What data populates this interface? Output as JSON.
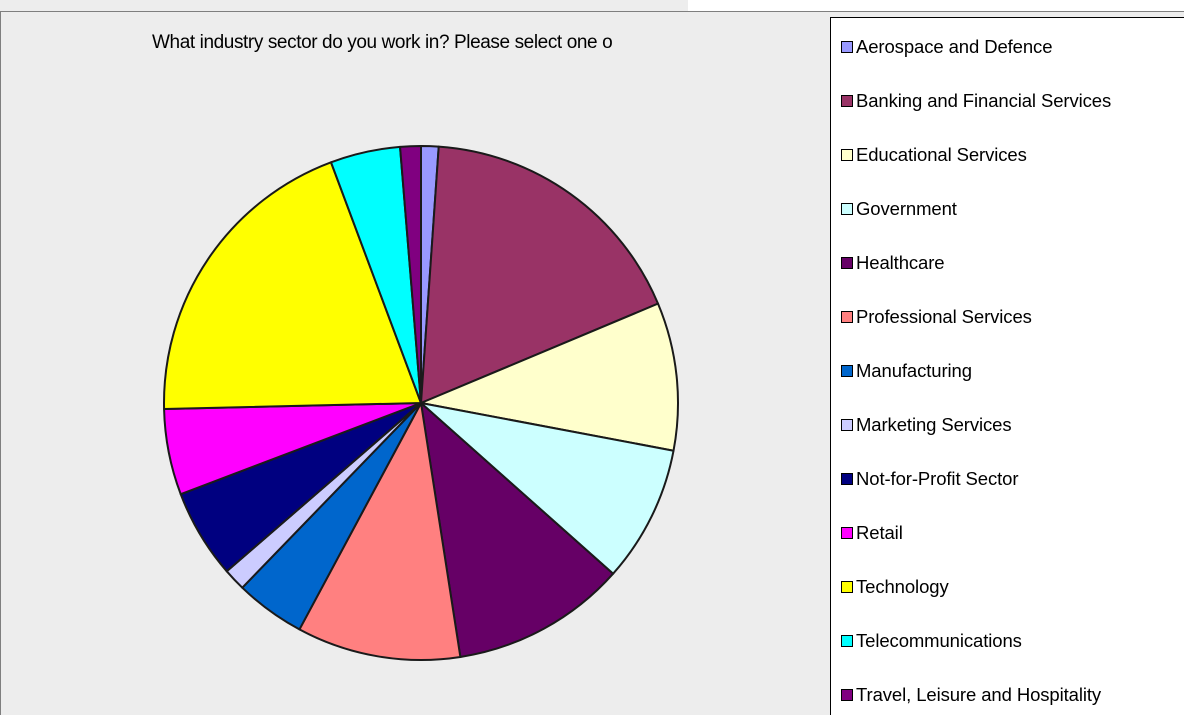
{
  "chart_data": {
    "type": "pie",
    "title": "What industry sector do you work in? Please select one o",
    "legend_position": "right",
    "slices": [
      {
        "label": "Aerospace and Defence",
        "value": 1.1,
        "color": "#9999ff"
      },
      {
        "label": "Banking and Financial Services",
        "value": 17.6,
        "color": "#993366"
      },
      {
        "label": "Educational Services",
        "value": 9.3,
        "color": "#ffffcc"
      },
      {
        "label": "Government",
        "value": 8.6,
        "color": "#ccffff"
      },
      {
        "label": "Healthcare",
        "value": 11.0,
        "color": "#660066"
      },
      {
        "label": "Professional Services",
        "value": 10.3,
        "color": "#ff8080"
      },
      {
        "label": "Manufacturing",
        "value": 4.4,
        "color": "#0066cc"
      },
      {
        "label": "Marketing Services",
        "value": 1.4,
        "color": "#ccccff"
      },
      {
        "label": "Not-for-Profit Sector",
        "value": 5.6,
        "color": "#000080"
      },
      {
        "label": "Retail",
        "value": 5.4,
        "color": "#ff00ff"
      },
      {
        "label": "Technology",
        "value": 19.7,
        "color": "#ffff00"
      },
      {
        "label": "Telecommunications",
        "value": 4.4,
        "color": "#00ffff"
      },
      {
        "label": "Travel, Leisure and Hospitality",
        "value": 1.3,
        "color": "#800080"
      }
    ]
  }
}
